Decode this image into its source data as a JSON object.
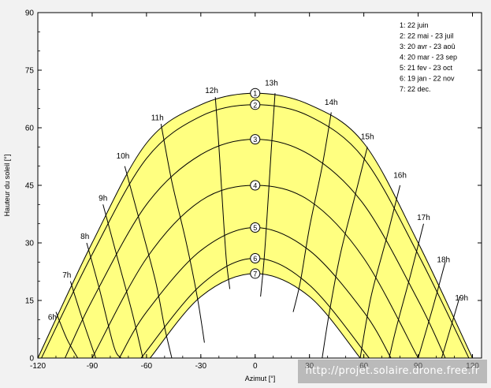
{
  "chart_data": {
    "type": "line",
    "title": "",
    "xlabel": "Azimut [°]",
    "ylabel": "Hauteur du soleil [°]",
    "xlim": [
      -120,
      125
    ],
    "ylim": [
      0,
      90
    ],
    "x_ticks": [
      "-120",
      "-90",
      "-60",
      "-30",
      "0",
      "30",
      "60",
      "90",
      "120"
    ],
    "y_ticks": [
      "0",
      "15",
      "30",
      "45",
      "60",
      "75",
      "90"
    ],
    "legend": {
      "placement": "top-right",
      "entries": [
        "1: 22 juin",
        "2: 22 mai - 23 juil",
        "3: 20 avr - 23 aoû",
        "4: 20 mar - 23 sep",
        "5: 21 fev - 23 oct",
        "6: 19 jan - 22 nov",
        "7: 22 dec."
      ]
    },
    "series": [
      {
        "name": "1",
        "points": [
          [
            -120,
            0
          ],
          [
            -90,
            30
          ],
          [
            -60,
            56
          ],
          [
            -30,
            66
          ],
          [
            0,
            69
          ],
          [
            30,
            66
          ],
          [
            60,
            56
          ],
          [
            90,
            30
          ],
          [
            120,
            0
          ]
        ]
      },
      {
        "name": "2",
        "points": [
          [
            -118,
            0
          ],
          [
            -90,
            27
          ],
          [
            -60,
            52
          ],
          [
            -30,
            63
          ],
          [
            0,
            66
          ],
          [
            30,
            63
          ],
          [
            60,
            52
          ],
          [
            90,
            27
          ],
          [
            118,
            0
          ]
        ]
      },
      {
        "name": "3",
        "points": [
          [
            -105,
            0
          ],
          [
            -90,
            15
          ],
          [
            -60,
            40
          ],
          [
            -30,
            53
          ],
          [
            0,
            57
          ],
          [
            30,
            53
          ],
          [
            60,
            40
          ],
          [
            90,
            15
          ],
          [
            105,
            0
          ]
        ]
      },
      {
        "name": "4",
        "points": [
          [
            -90,
            0
          ],
          [
            -60,
            26
          ],
          [
            -30,
            41
          ],
          [
            0,
            45
          ],
          [
            30,
            41
          ],
          [
            60,
            26
          ],
          [
            90,
            0
          ]
        ]
      },
      {
        "name": "5",
        "points": [
          [
            -75,
            0
          ],
          [
            -60,
            12
          ],
          [
            -30,
            28
          ],
          [
            0,
            34
          ],
          [
            30,
            28
          ],
          [
            60,
            12
          ],
          [
            75,
            0
          ]
        ]
      },
      {
        "name": "6",
        "points": [
          [
            -63,
            0
          ],
          [
            -30,
            19
          ],
          [
            0,
            26
          ],
          [
            30,
            19
          ],
          [
            63,
            0
          ]
        ]
      },
      {
        "name": "7",
        "points": [
          [
            -58,
            0
          ],
          [
            -30,
            16
          ],
          [
            0,
            22
          ],
          [
            30,
            16
          ],
          [
            58,
            0
          ]
        ]
      }
    ],
    "hour_labels": [
      {
        "label": "6h",
        "x": -112,
        "y": 10
      },
      {
        "label": "7h",
        "x": -104,
        "y": 21
      },
      {
        "label": "8h",
        "x": -94,
        "y": 31
      },
      {
        "label": "9h",
        "x": -84,
        "y": 41
      },
      {
        "label": "10h",
        "x": -73,
        "y": 52
      },
      {
        "label": "11h",
        "x": -54,
        "y": 62
      },
      {
        "label": "12h",
        "x": -24,
        "y": 69
      },
      {
        "label": "13h",
        "x": 9,
        "y": 71
      },
      {
        "label": "14h",
        "x": 42,
        "y": 66
      },
      {
        "label": "15h",
        "x": 62,
        "y": 57
      },
      {
        "label": "16h",
        "x": 80,
        "y": 47
      },
      {
        "label": "17h",
        "x": 93,
        "y": 36
      },
      {
        "label": "18h",
        "x": 104,
        "y": 25
      },
      {
        "label": "19h",
        "x": 114,
        "y": 15
      }
    ],
    "hour_loops": [
      [
        [
          -110,
          12
        ],
        [
          -104,
          5
        ],
        [
          -98,
          0
        ]
      ],
      [
        [
          -102,
          20
        ],
        [
          -96,
          11
        ],
        [
          -88,
          0
        ]
      ],
      [
        [
          -93,
          30
        ],
        [
          -86,
          18
        ],
        [
          -78,
          3
        ],
        [
          -74,
          0
        ]
      ],
      [
        [
          -84,
          40
        ],
        [
          -76,
          26
        ],
        [
          -68,
          12
        ],
        [
          -62,
          0
        ]
      ],
      [
        [
          -72,
          50
        ],
        [
          -64,
          36
        ],
        [
          -55,
          20
        ],
        [
          -50,
          8
        ],
        [
          -46,
          0
        ]
      ],
      [
        [
          -52,
          61
        ],
        [
          -46,
          46
        ],
        [
          -38,
          30
        ],
        [
          -32,
          16
        ],
        [
          -28,
          4
        ]
      ],
      [
        [
          -22,
          68
        ],
        [
          -20,
          55
        ],
        [
          -18,
          40
        ],
        [
          -16,
          26
        ],
        [
          -14,
          18
        ]
      ],
      [
        [
          11,
          69
        ],
        [
          9,
          55
        ],
        [
          7,
          40
        ],
        [
          5,
          26
        ],
        [
          3,
          16
        ]
      ],
      [
        [
          42,
          64
        ],
        [
          37,
          50
        ],
        [
          30,
          34
        ],
        [
          25,
          20
        ],
        [
          21,
          12
        ]
      ],
      [
        [
          62,
          55
        ],
        [
          55,
          42
        ],
        [
          47,
          27
        ],
        [
          41,
          12
        ],
        [
          37,
          0
        ]
      ],
      [
        [
          80,
          45
        ],
        [
          73,
          32
        ],
        [
          64,
          16
        ],
        [
          58,
          0
        ]
      ],
      [
        [
          93,
          35
        ],
        [
          86,
          22
        ],
        [
          78,
          8
        ],
        [
          74,
          0
        ]
      ],
      [
        [
          105,
          25
        ],
        [
          98,
          13
        ],
        [
          90,
          0
        ]
      ],
      [
        [
          113,
          16
        ],
        [
          108,
          8
        ],
        [
          103,
          0
        ]
      ]
    ]
  },
  "watermark": "http://projet.solaire.drone.free.fr"
}
